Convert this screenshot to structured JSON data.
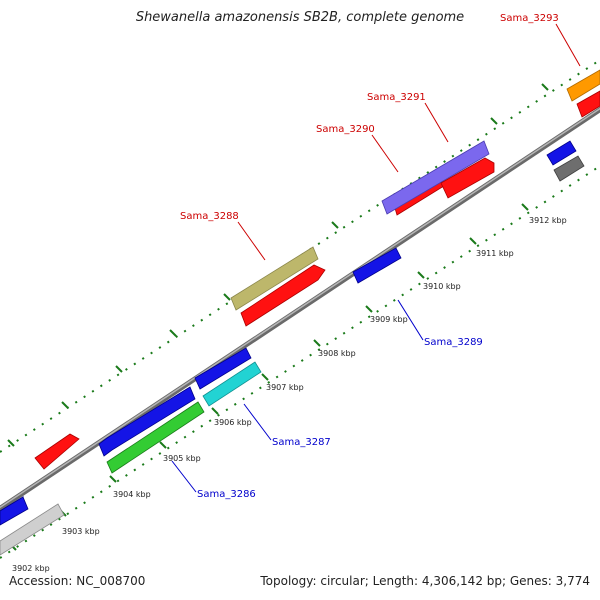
{
  "title": "Shewanella amazonensis SB2B, complete genome",
  "accession": "Accession: NC_008700",
  "summary": "Topology: circular; Length: 4,306,142 bp; Genes: 3,774",
  "colors": {
    "backbone": "#808080",
    "tick": "#1a7a1a",
    "forward_label": "#cc0000",
    "reverse_label": "#0000cc",
    "red": "#ff1111",
    "blue": "#1414e6",
    "olive": "#bdb76b",
    "purple": "#7b68ee",
    "green": "#33cc33",
    "cyan": "#22d3d3",
    "silver": "#cfcfcf",
    "orange": "#ff9900",
    "gray": "#6e6e6e"
  },
  "scale_labels": [
    "3902 kbp",
    "3903 kbp",
    "3904 kbp",
    "3905 kbp",
    "3906 kbp",
    "3907 kbp",
    "3908 kbp",
    "3909 kbp",
    "3910 kbp",
    "3911 kbp",
    "3912 kbp"
  ],
  "gene_labels": {
    "forward": [
      "Sama_3288",
      "Sama_3290",
      "Sama_3291",
      "Sama_3293"
    ],
    "reverse": [
      "Sama_3286",
      "Sama_3287",
      "Sama_3289"
    ]
  }
}
